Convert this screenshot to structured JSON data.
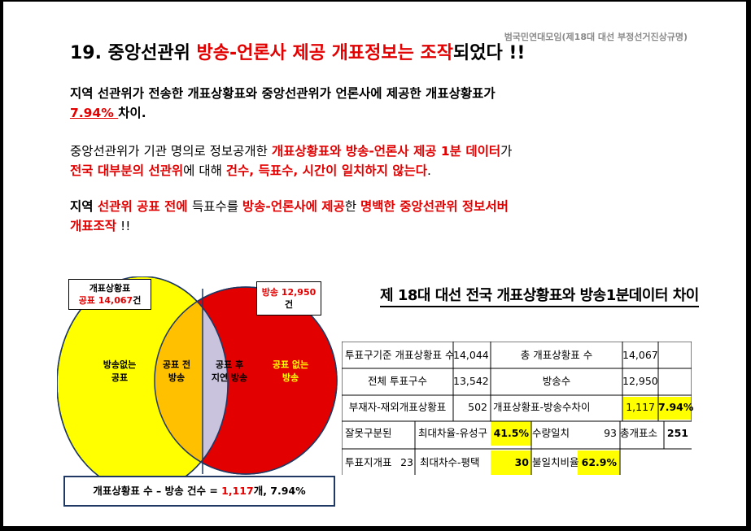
{
  "header": {
    "source": "범국민연대모임(제18대 대선 부정선거진상규명)",
    "title": {
      "part1": "19. 중앙선관위 ",
      "part2": "방송-언론사 제공 개표정보는 조작",
      "part3": "되었다 !!"
    }
  },
  "paragraphs": {
    "p1": {
      "line1": "지역 선관위가 전송한 개표상황표와 중앙선관위가 언론사에 제공한 개표상황표가",
      "percent": "7.94% ",
      "tail": "차이."
    },
    "p2": {
      "a": "중앙선관위가 기관 명의로 정보공개한 ",
      "b": "개표상황표와 방송-언론사 제공 1분 데이터",
      "c": "가",
      "d": "전국 대부분의 선관위",
      "e": "에 대해 ",
      "f": "건수, 득표수, 시간이 일치하지 않는다",
      "g": "."
    },
    "p3": {
      "a": "지역 ",
      "b": "선관위 공표 전에 ",
      "c": "득표수를 ",
      "d": "방송-언론사에 제공",
      "e": "한 ",
      "f": "명백한 중앙선관위 정보서버",
      "g": "개표조작",
      "h": " !!"
    }
  },
  "venn": {
    "box_left": {
      "line1": "개표상황표",
      "line2": "공표 14,067",
      "line2_suffix": "건"
    },
    "box_right": {
      "label": "방송 12,950",
      "suffix": "건"
    },
    "regions": {
      "left_only": {
        "line1": "방송없는",
        "line2": "공표"
      },
      "left_mid": {
        "line1": "공표 전",
        "line2": "방송"
      },
      "right_mid": {
        "line1": "공표 후",
        "line2": "지연 방송"
      },
      "right_only": {
        "line1": "공표 없는",
        "line2": "방송"
      }
    },
    "colors": {
      "yellow": "#ffff00",
      "orange": "#ffc000",
      "lavender": "#c9c3dd",
      "red": "#e30000"
    },
    "summary": {
      "a": "개표상황표 수 – 방송 건수 = ",
      "b": "1,117",
      "c": "개, 7.94%"
    }
  },
  "table": {
    "title": "제 18대 대선 전국 개표상황표와 방송1분데이터 차이",
    "rows": [
      {
        "l1": "투표구기준 개표상황표 수",
        "v1": "14,044",
        "l2": "총 개표상황표 수",
        "v2": "14,067"
      },
      {
        "l1": "전체 투표구수",
        "v1": "13,542",
        "l2": "방송수",
        "v2": "12,950"
      },
      {
        "l1": "부재자-재외개표상황표",
        "v1": "502",
        "l2": "개표상황표-방송수차이",
        "v2": "1,117",
        "v3": "7.94%"
      }
    ],
    "row4": {
      "a": "잘못구분된",
      "b": "최대차율-유성구",
      "c": "41.5%",
      "d": "수량일치",
      "e": "93",
      "f": "총개표소",
      "g": "251"
    },
    "row5": {
      "a": "투표지개표",
      "b": "23",
      "c": "최대차수-평택",
      "d": "30",
      "e": "불일치비율",
      "f": "62.9%"
    }
  }
}
